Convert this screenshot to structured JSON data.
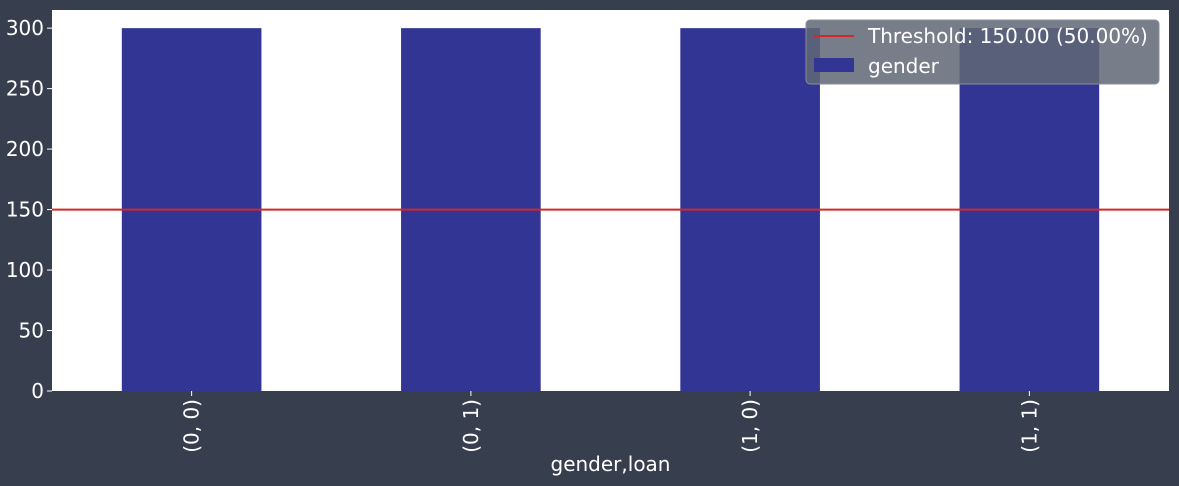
{
  "colors": {
    "background": "#373f4f",
    "plot_background": "#ffffff",
    "bar": "#323593",
    "threshold": "#d62728",
    "text": "#ffffff",
    "legend_background": "#5f6775"
  },
  "chart_data": {
    "type": "bar",
    "categories": [
      "(0, 0)",
      "(0, 1)",
      "(1, 0)",
      "(1, 1)"
    ],
    "series": [
      {
        "name": "gender",
        "values": [
          300,
          300,
          300,
          300
        ]
      }
    ],
    "threshold": {
      "value": 150,
      "label": "Threshold: 150.00 (50.00%)"
    },
    "xlabel": "gender,loan",
    "ylabel": "",
    "ylim": [
      0,
      315
    ],
    "yticks": [
      0,
      50,
      100,
      150,
      200,
      250,
      300
    ],
    "grid": false,
    "legend_position": "top-right"
  }
}
